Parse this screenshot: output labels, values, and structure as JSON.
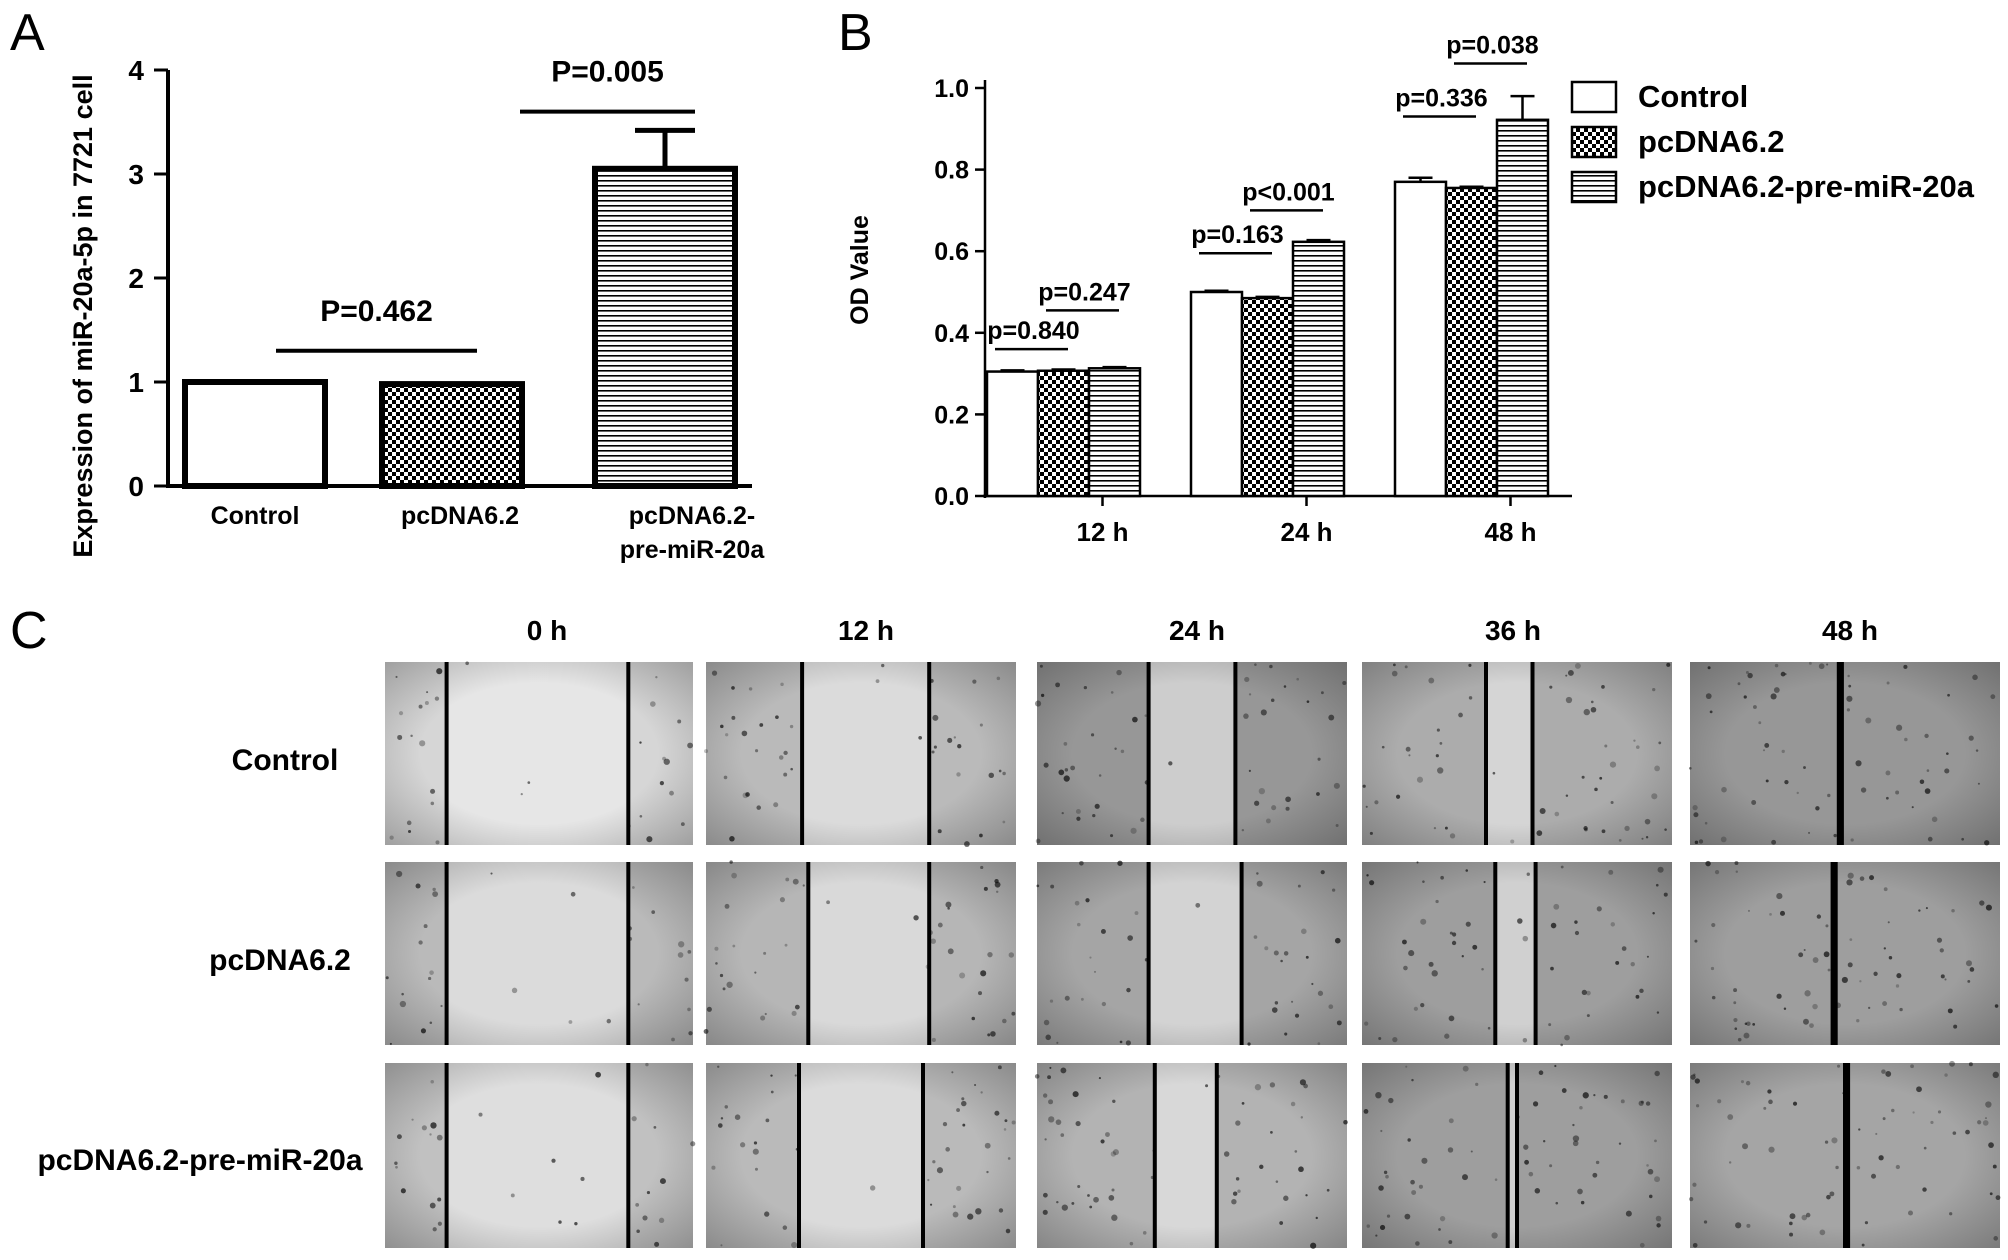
{
  "panel_labels": [
    "A",
    "B",
    "C"
  ],
  "colors": {
    "ink": "#000000",
    "background": "#ffffff",
    "micrograph_light": "#e6e6e6",
    "micrograph_dark": "#5a5a5a"
  },
  "chart_data": [
    {
      "id": "A",
      "type": "bar",
      "title": "",
      "xlabel": "",
      "ylabel": "Expression of miR-20a-5p in 7721 cell",
      "categories": [
        "Control",
        "pcDNA6.2",
        "pcDNA6.2-\npre-miR-20a"
      ],
      "values": [
        1.0,
        0.98,
        3.05
      ],
      "errors": [
        0.0,
        0.02,
        0.37
      ],
      "patterns": [
        "white",
        "checker",
        "horizontal-lines"
      ],
      "ylim": [
        0,
        4
      ],
      "yticks": [
        "0",
        "1",
        "2",
        "3",
        "4"
      ],
      "grid": false,
      "annotations": [
        {
          "text": "P=0.462",
          "from": 0,
          "to": 1,
          "y": 1.3
        },
        {
          "text": "P=0.005",
          "from": 1,
          "to": 2,
          "y": 3.6
        }
      ]
    },
    {
      "id": "B",
      "type": "bar",
      "title": "",
      "xlabel": "",
      "ylabel": "OD Value",
      "categories": [
        "12 h",
        "24 h",
        "48 h"
      ],
      "series": [
        {
          "name": "Control",
          "pattern": "white",
          "values": [
            0.305,
            0.5,
            0.77
          ],
          "errors": [
            0.003,
            0.003,
            0.01
          ]
        },
        {
          "name": "pcDNA6.2",
          "pattern": "checker",
          "values": [
            0.307,
            0.485,
            0.755
          ],
          "errors": [
            0.003,
            0.003,
            0.003
          ]
        },
        {
          "name": "pcDNA6.2-pre-miR-20a",
          "pattern": "horizontal-lines",
          "values": [
            0.313,
            0.623,
            0.922
          ],
          "errors": [
            0.003,
            0.004,
            0.058
          ]
        }
      ],
      "ylim": [
        0,
        1.0
      ],
      "yticks": [
        "0.0",
        "0.2",
        "0.4",
        "0.6",
        "0.8",
        "1.0"
      ],
      "grid": false,
      "legend": "top-right",
      "annotations": [
        {
          "text": "p=0.840",
          "group": 0,
          "from": 0,
          "to": 1,
          "y": 0.36
        },
        {
          "text": "p=0.247",
          "group": 0,
          "from": 1,
          "to": 2,
          "y": 0.455
        },
        {
          "text": "p=0.163",
          "group": 1,
          "from": 0,
          "to": 1,
          "y": 0.595
        },
        {
          "text": "p<0.001",
          "group": 1,
          "from": 1,
          "to": 2,
          "y": 0.7
        },
        {
          "text": "p=0.336",
          "group": 2,
          "from": 0,
          "to": 1,
          "y": 0.93
        },
        {
          "text": "p=0.038",
          "group": 2,
          "from": 1,
          "to": 2,
          "y": 1.06
        }
      ]
    }
  ],
  "panel_c": {
    "time_points": [
      "0 h",
      "12 h",
      "24 h",
      "36 h",
      "48 h"
    ],
    "rows": [
      "Control",
      "pcDNA6.2",
      "pcDNA6.2-pre-miR-20a"
    ]
  }
}
